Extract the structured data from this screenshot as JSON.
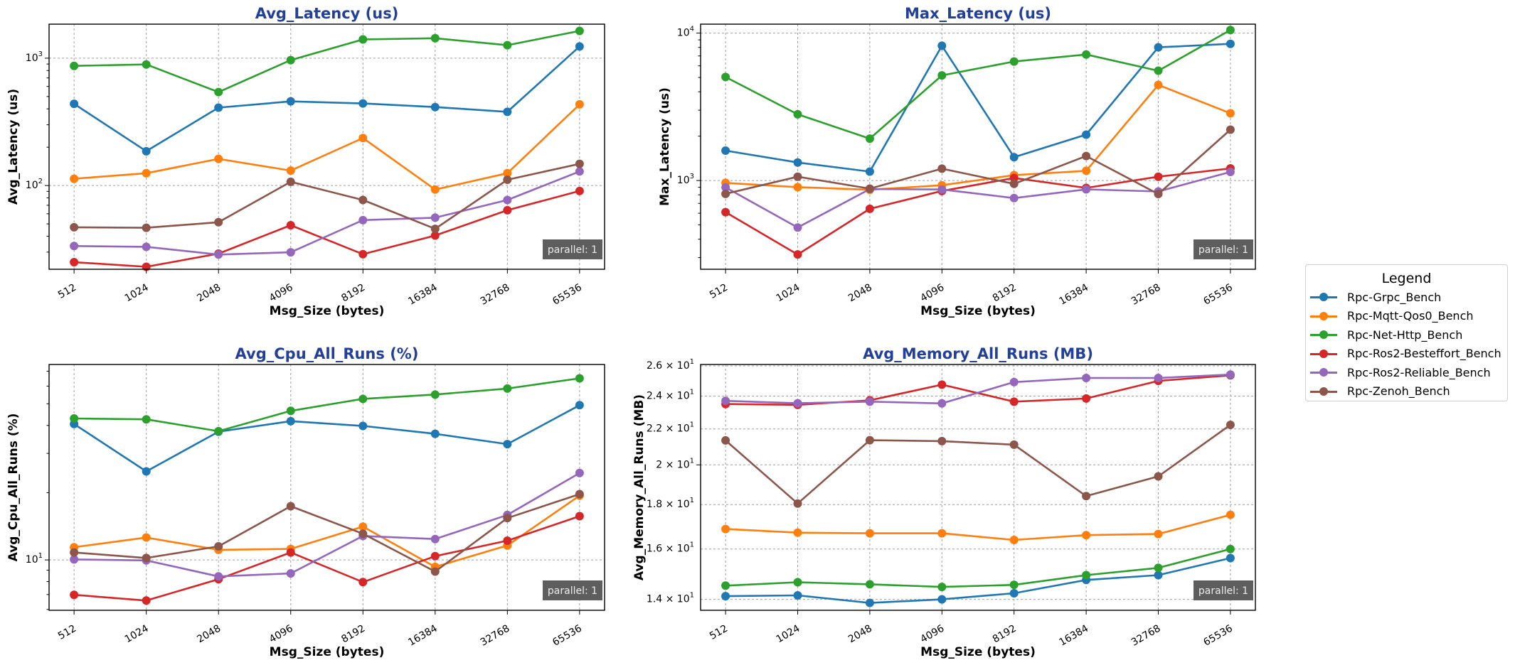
{
  "figure": {
    "legend_title": "Legend",
    "badge_text": "parallel: 1"
  },
  "series_meta": [
    {
      "name": "Rpc-Grpc_Bench",
      "color": "#1f77b4"
    },
    {
      "name": "Rpc-Mqtt-Qos0_Bench",
      "color": "#ff7f0e"
    },
    {
      "name": "Rpc-Net-Http_Bench",
      "color": "#2ca02c"
    },
    {
      "name": "Rpc-Ros2-Besteffort_Bench",
      "color": "#d62728"
    },
    {
      "name": "Rpc-Ros2-Reliable_Bench",
      "color": "#9467bd"
    },
    {
      "name": "Rpc-Zenoh_Bench",
      "color": "#8c564b"
    }
  ],
  "chart_data": [
    {
      "type": "line",
      "title": "Avg_Latency (us)",
      "xlabel": "Msg_Size (bytes)",
      "ylabel": "Avg_Latency (us)",
      "yscale": "log",
      "ylim": [
        22,
        1850
      ],
      "yticks": [
        100,
        1000
      ],
      "ytick_labels": [
        "10^2",
        "10^3"
      ],
      "grid": true,
      "legend": "outside-right",
      "annotation": "parallel: 1",
      "categories": [
        "512",
        "1024",
        "2048",
        "4096",
        "8192",
        "16384",
        "32768",
        "65536"
      ],
      "series": [
        {
          "name": "Rpc-Grpc_Bench",
          "values": [
            438,
            186,
            409,
            458,
            441,
            413,
            379,
            1237
          ]
        },
        {
          "name": "Rpc-Mqtt-Qos0_Bench",
          "values": [
            113,
            125,
            162,
            131,
            236,
            93,
            125,
            434
          ]
        },
        {
          "name": "Rpc-Net-Http_Bench",
          "values": [
            870,
            893,
            542,
            966,
            1403,
            1435,
            1265,
            1637
          ]
        },
        {
          "name": "Rpc-Ros2-Besteffort_Bench",
          "values": [
            25,
            23,
            29.2,
            48.8,
            28.9,
            40.5,
            64,
            90.6
          ]
        },
        {
          "name": "Rpc-Ros2-Reliable_Bench",
          "values": [
            33.5,
            33,
            28.7,
            29.9,
            53.5,
            55.9,
            77,
            129
          ]
        },
        {
          "name": "Rpc-Zenoh_Bench",
          "values": [
            47,
            46.6,
            51.5,
            107,
            77,
            45.7,
            111,
            148
          ]
        }
      ]
    },
    {
      "type": "line",
      "title": "Max_Latency (us)",
      "xlabel": "Msg_Size (bytes)",
      "ylabel": "Max_Latency (us)",
      "yscale": "log",
      "ylim": [
        250,
        11500
      ],
      "yticks": [
        1000,
        10000
      ],
      "ytick_labels": [
        "10^3",
        "10^4"
      ],
      "grid": true,
      "legend": "outside-right",
      "annotation": "parallel: 1",
      "categories": [
        "512",
        "1024",
        "2048",
        "4096",
        "8192",
        "16384",
        "32768",
        "65536"
      ],
      "series": [
        {
          "name": "Rpc-Grpc_Bench",
          "values": [
            1596,
            1325,
            1150,
            8210,
            1440,
            2048,
            8005,
            8456
          ]
        },
        {
          "name": "Rpc-Mqtt-Qos0_Bench",
          "values": [
            964,
            902,
            865,
            929,
            1088,
            1164,
            4453,
            2859
          ]
        },
        {
          "name": "Rpc-Net-Http_Bench",
          "values": [
            5035,
            2812,
            1924,
            5165,
            6412,
            7160,
            5556,
            10490
          ]
        },
        {
          "name": "Rpc-Ros2-Besteffort_Bench",
          "values": [
            610,
            315,
            643,
            849,
            1041,
            891,
            1061,
            1208
          ]
        },
        {
          "name": "Rpc-Ros2-Reliable_Bench",
          "values": [
            898,
            480,
            875,
            869,
            760,
            871,
            843,
            1143
          ]
        },
        {
          "name": "Rpc-Zenoh_Bench",
          "values": [
            812,
            1061,
            881,
            1203,
            949,
            1466,
            810,
            2213
          ]
        }
      ]
    },
    {
      "type": "line",
      "title": "Avg_Cpu_All_Runs (%)",
      "xlabel": "Msg_Size (bytes)",
      "ylabel": "Avg_Cpu_All_Runs (%)",
      "yscale": "log",
      "ylim": [
        5.95,
        75
      ],
      "yticks": [
        10
      ],
      "ytick_labels": [
        "10^1"
      ],
      "grid": true,
      "legend": "outside-right",
      "annotation": "parallel: 1",
      "categories": [
        "512",
        "1024",
        "2048",
        "4096",
        "8192",
        "16384",
        "32768",
        "65536"
      ],
      "series": [
        {
          "name": "Rpc-Grpc_Bench",
          "values": [
            40.6,
            24.9,
            37.5,
            41.8,
            39.8,
            36.7,
            33.0,
            49.3
          ]
        },
        {
          "name": "Rpc-Mqtt-Qos0_Bench",
          "values": [
            11.4,
            12.6,
            11.1,
            11.2,
            14.1,
            9.31,
            11.6,
            19.4
          ]
        },
        {
          "name": "Rpc-Net-Http_Bench",
          "values": [
            43.0,
            42.6,
            37.7,
            46.5,
            52.6,
            55.0,
            58.5,
            65.0
          ]
        },
        {
          "name": "Rpc-Ros2-Besteffort_Bench",
          "values": [
            6.98,
            6.58,
            8.2,
            10.8,
            7.96,
            10.4,
            12.2,
            15.7
          ]
        },
        {
          "name": "Rpc-Ros2-Reliable_Bench",
          "values": [
            10.05,
            9.95,
            8.44,
            8.7,
            12.8,
            12.4,
            15.9,
            24.5
          ]
        },
        {
          "name": "Rpc-Zenoh_Bench",
          "values": [
            10.8,
            10.2,
            11.5,
            17.4,
            13.1,
            8.87,
            15.4,
            19.7
          ]
        }
      ]
    },
    {
      "type": "line",
      "title": "Avg_Memory_All_Runs (MB)",
      "xlabel": "Msg_Size (bytes)",
      "ylabel": "Avg_Memory_All_Runs (MB)",
      "yscale": "log",
      "ylim": [
        13.6,
        26.1
      ],
      "yticks": [
        14,
        16,
        18,
        20,
        22,
        24,
        26
      ],
      "ytick_labels": [
        "1.4 × 10^1",
        "1.6 × 10^1",
        "1.8 × 10^1",
        "2 × 10^1",
        "2.2 × 10^1",
        "2.4 × 10^1",
        "2.6 × 10^1"
      ],
      "grid": true,
      "legend": "outside-right",
      "annotation": "parallel: 1",
      "categories": [
        "512",
        "1024",
        "2048",
        "4096",
        "8192",
        "16384",
        "32768",
        "65536"
      ],
      "series": [
        {
          "name": "Rpc-Grpc_Bench",
          "values": [
            14.12,
            14.15,
            13.87,
            14.0,
            14.23,
            14.74,
            14.93,
            15.62
          ]
        },
        {
          "name": "Rpc-Mqtt-Qos0_Bench",
          "values": [
            16.87,
            16.71,
            16.68,
            16.68,
            16.39,
            16.6,
            16.65,
            17.52
          ]
        },
        {
          "name": "Rpc-Net-Http_Bench",
          "values": [
            14.52,
            14.65,
            14.57,
            14.47,
            14.55,
            14.93,
            15.22,
            16.0
          ]
        },
        {
          "name": "Rpc-Ros2-Besteffort_Bench",
          "values": [
            23.5,
            23.45,
            23.73,
            24.74,
            23.65,
            23.85,
            24.99,
            25.36
          ]
        },
        {
          "name": "Rpc-Ros2-Reliable_Bench",
          "values": [
            23.7,
            23.55,
            23.65,
            23.54,
            24.91,
            25.18,
            25.18,
            25.41
          ]
        },
        {
          "name": "Rpc-Zenoh_Bench",
          "values": [
            21.34,
            18.05,
            21.35,
            21.3,
            21.1,
            18.41,
            19.4,
            22.24
          ]
        }
      ]
    }
  ]
}
